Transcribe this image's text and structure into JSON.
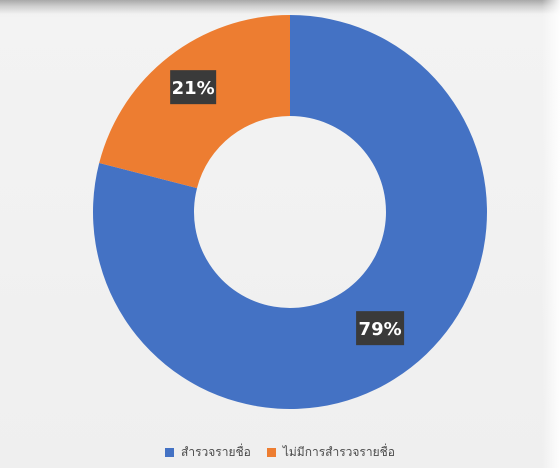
{
  "chart_data": {
    "type": "pie",
    "variant": "donut",
    "legend_position": "bottom",
    "series": [
      {
        "name": "สำรวจรายชื่อ",
        "value": 79,
        "label": "79%",
        "color": "#4472c4"
      },
      {
        "name": "ไม่มีการสำรวจรายชื่อ",
        "value": 21,
        "label": "21%",
        "color": "#ed7d31"
      }
    ],
    "label_style": {
      "background": "#3a3a3a",
      "text_color": "#ffffff"
    }
  }
}
